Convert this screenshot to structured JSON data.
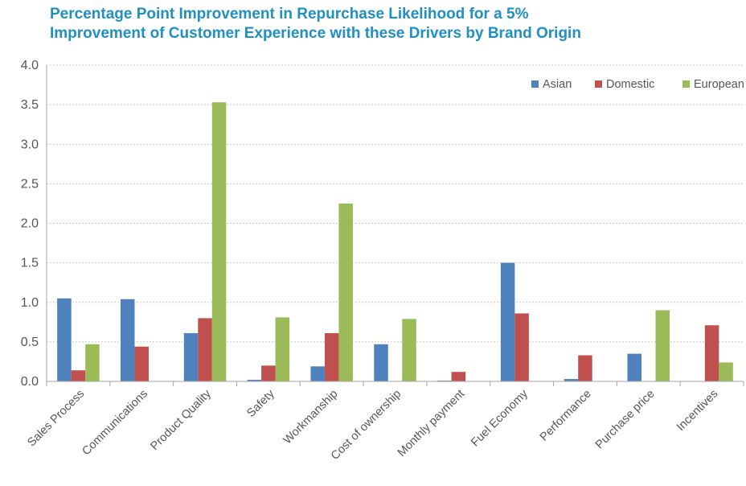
{
  "chart_data": {
    "type": "bar",
    "title_line1": "Percentage Point Improvement in Repurchase Likelihood for a 5%",
    "title_line2": "Improvement of Customer Experience with these Drivers by Brand Origin",
    "xlabel": "",
    "ylabel": "",
    "ylim": [
      0,
      4.0
    ],
    "yticks": [
      "0.0",
      "0.5",
      "1.0",
      "1.5",
      "2.0",
      "2.5",
      "3.0",
      "3.5",
      "4.0"
    ],
    "grid": true,
    "legend_position": "top-right",
    "categories": [
      "Sales Process",
      "Communications",
      "Product Quality",
      "Safety",
      "Workmanship",
      "Cost of ownership",
      "Monthly payment",
      "Fuel Economy",
      "Performance",
      "Purchase price",
      "Incentives"
    ],
    "series": [
      {
        "name": "Asian",
        "color": "#4f81bd",
        "values": [
          1.05,
          1.04,
          0.61,
          0.02,
          0.19,
          0.47,
          0.01,
          1.5,
          0.03,
          0.35,
          0.0
        ]
      },
      {
        "name": "Domestic",
        "color": "#c0504d",
        "values": [
          0.14,
          0.44,
          0.8,
          0.2,
          0.61,
          0.0,
          0.12,
          0.86,
          0.33,
          0.0,
          0.71
        ]
      },
      {
        "name": "European",
        "color": "#9bbb59",
        "values": [
          0.47,
          0.0,
          3.53,
          0.81,
          2.25,
          0.79,
          0.0,
          0.0,
          0.0,
          0.9,
          0.24
        ]
      }
    ]
  }
}
